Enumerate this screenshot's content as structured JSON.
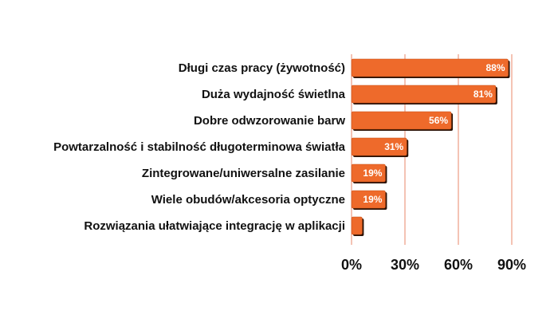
{
  "chart_data": {
    "type": "bar",
    "orientation": "horizontal",
    "categories": [
      "Długi czas pracy (żywotność)",
      "Duża wydajność świetlna",
      "Dobre odwzorowanie barw",
      "Powtarzalność i stabilność długoterminowa światła",
      "Zintegrowane/uniwersalne zasilanie",
      "Wiele obudów/akcesoria optyczne",
      "Rozwiązania ułatwiające integrację w aplikacji"
    ],
    "values": [
      88,
      81,
      56,
      31,
      19,
      19,
      6
    ],
    "data_labels": [
      "88%",
      "81%",
      "56%",
      "31%",
      "19%",
      "19%",
      ""
    ],
    "xlim": [
      0,
      90
    ],
    "xticks": [
      0,
      30,
      60,
      90
    ],
    "xtick_labels": [
      "0%",
      "30%",
      "60%",
      "90%"
    ],
    "grid": true,
    "legend": "none",
    "colors": {
      "bar": "#ee6a2b",
      "bar_shadow": "#2b1206",
      "gridline": "#e8876a",
      "text": "#111111",
      "data_label": "#ffffff"
    }
  }
}
